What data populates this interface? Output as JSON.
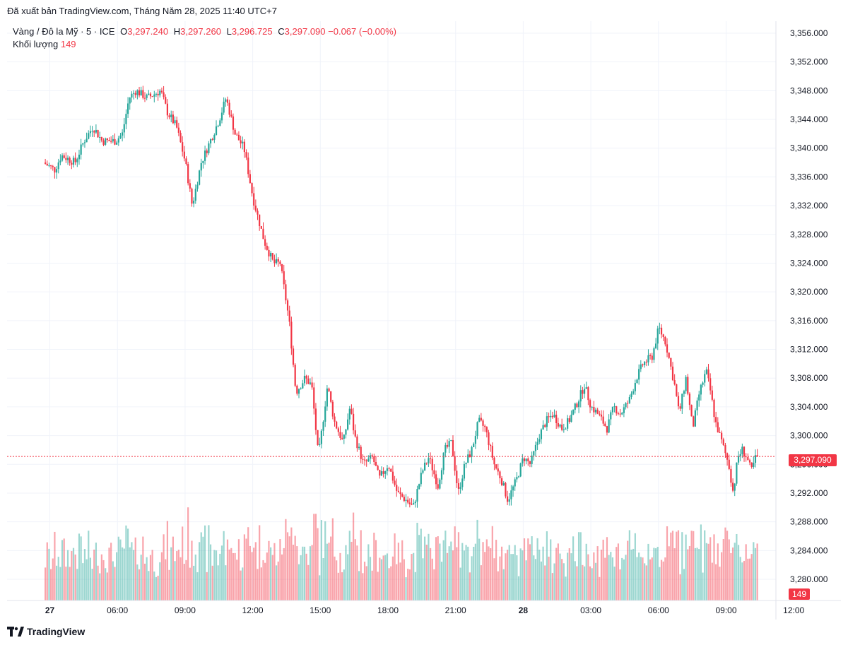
{
  "published_text": "Đã xuất bản TradingView.com, Tháng Năm 28, 2025 11:40 UTC+7",
  "legend": {
    "symbol": "Vàng / Đô la Mỹ · 5 · ICE",
    "o_label": "O",
    "o_value": "3,297.240",
    "h_label": "H",
    "h_value": "3,297.260",
    "l_label": "L",
    "l_value": "3,296.725",
    "c_label": "C",
    "c_value": "3,297.090",
    "change": "−0.067 (−0.00%)",
    "volume_label": "Khối lượng",
    "volume_value": "149"
  },
  "brand": "TradingView",
  "colors": {
    "up": "#26a69a",
    "down": "#f23645",
    "grid": "#f0f3fa",
    "text": "#131722"
  },
  "chart_data": {
    "type": "candlestick",
    "interval": "5 minutes",
    "ylim": [
      3278,
      3360
    ],
    "y_ticks": [
      3356,
      3352,
      3348,
      3344,
      3340,
      3336,
      3332,
      3328,
      3324,
      3320,
      3316,
      3312,
      3308,
      3304,
      3300,
      3296,
      3292,
      3288,
      3284,
      3280
    ],
    "y_tick_labels": [
      "3,356.000",
      "3,352.000",
      "3,348.000",
      "3,344.000",
      "3,340.000",
      "3,336.000",
      "3,332.000",
      "3,328.000",
      "3,324.000",
      "3,320.000",
      "3,316.000",
      "3,312.000",
      "3,308.000",
      "3,304.000",
      "3,300.000",
      "3,296.000",
      "3,292.000",
      "3,288.000",
      "3,284.000",
      "3,280.000"
    ],
    "x_ticks": [
      {
        "label": "27",
        "hour": 3,
        "bold": true
      },
      {
        "label": "06:00",
        "hour": 6
      },
      {
        "label": "09:00",
        "hour": 9
      },
      {
        "label": "12:00",
        "hour": 12
      },
      {
        "label": "15:00",
        "hour": 15
      },
      {
        "label": "18:00",
        "hour": 18
      },
      {
        "label": "21:00",
        "hour": 21
      },
      {
        "label": "28",
        "hour": 24,
        "bold": true
      },
      {
        "label": "03:00",
        "hour": 27
      },
      {
        "label": "06:00",
        "hour": 30
      },
      {
        "label": "09:00",
        "hour": 33
      },
      {
        "label": "12:00",
        "hour": 36
      }
    ],
    "x_range_hours": [
      2.8,
      35.75
    ],
    "last_price": 3297.09,
    "last_price_label": "3,297.090",
    "last_volume": "149",
    "price_path": [
      [
        2.8,
        3338
      ],
      [
        3.3,
        3337
      ],
      [
        3.6,
        3339
      ],
      [
        4.2,
        3338
      ],
      [
        4.6,
        3341
      ],
      [
        5.0,
        3343
      ],
      [
        5.4,
        3341
      ],
      [
        6.0,
        3341
      ],
      [
        6.3,
        3342
      ],
      [
        6.6,
        3347
      ],
      [
        6.9,
        3348
      ],
      [
        7.4,
        3347
      ],
      [
        8.0,
        3348
      ],
      [
        8.3,
        3345
      ],
      [
        8.7,
        3343
      ],
      [
        9.1,
        3338
      ],
      [
        9.4,
        3332
      ],
      [
        9.8,
        3338
      ],
      [
        10.2,
        3341
      ],
      [
        10.6,
        3344
      ],
      [
        10.9,
        3347
      ],
      [
        11.3,
        3342
      ],
      [
        11.7,
        3340
      ],
      [
        12.1,
        3333
      ],
      [
        12.6,
        3327
      ],
      [
        13.0,
        3324
      ],
      [
        13.3,
        3324
      ],
      [
        13.7,
        3316
      ],
      [
        14.0,
        3306
      ],
      [
        14.4,
        3308
      ],
      [
        14.7,
        3307
      ],
      [
        15.0,
        3297
      ],
      [
        15.4,
        3307
      ],
      [
        15.7,
        3302
      ],
      [
        16.1,
        3299
      ],
      [
        16.4,
        3304
      ],
      [
        16.6,
        3300
      ],
      [
        17.0,
        3296
      ],
      [
        17.4,
        3297
      ],
      [
        17.7,
        3294
      ],
      [
        18.1,
        3296
      ],
      [
        18.5,
        3292
      ],
      [
        18.9,
        3291
      ],
      [
        19.2,
        3290
      ],
      [
        19.6,
        3295
      ],
      [
        19.9,
        3297
      ],
      [
        20.3,
        3293
      ],
      [
        20.6,
        3298
      ],
      [
        20.9,
        3299
      ],
      [
        21.2,
        3292
      ],
      [
        21.5,
        3296
      ],
      [
        21.8,
        3298
      ],
      [
        22.1,
        3302
      ],
      [
        22.4,
        3301
      ],
      [
        22.8,
        3296
      ],
      [
        23.1,
        3294
      ],
      [
        23.4,
        3291
      ],
      [
        23.8,
        3294
      ],
      [
        24.1,
        3297
      ],
      [
        24.4,
        3296
      ],
      [
        24.8,
        3300
      ],
      [
        25.1,
        3302
      ],
      [
        25.4,
        3303
      ],
      [
        25.8,
        3301
      ],
      [
        26.1,
        3302
      ],
      [
        26.4,
        3304
      ],
      [
        26.8,
        3307
      ],
      [
        27.1,
        3304
      ],
      [
        27.4,
        3303
      ],
      [
        27.8,
        3301
      ],
      [
        28.1,
        3304
      ],
      [
        28.4,
        3303
      ],
      [
        28.8,
        3305
      ],
      [
        29.1,
        3308
      ],
      [
        29.4,
        3310
      ],
      [
        29.8,
        3311
      ],
      [
        30.1,
        3315
      ],
      [
        30.4,
        3313
      ],
      [
        30.8,
        3307
      ],
      [
        31.0,
        3303
      ],
      [
        31.3,
        3308
      ],
      [
        31.6,
        3301
      ],
      [
        31.9,
        3306
      ],
      [
        32.2,
        3309
      ],
      [
        32.4,
        3306
      ],
      [
        32.6,
        3302
      ],
      [
        32.8,
        3300
      ],
      [
        33.0,
        3298
      ],
      [
        33.2,
        3296
      ],
      [
        33.4,
        3292
      ],
      [
        33.6,
        3297
      ],
      [
        33.8,
        3298
      ],
      [
        34.0,
        3297
      ],
      [
        34.2,
        3295
      ],
      [
        34.4,
        3297
      ]
    ]
  }
}
